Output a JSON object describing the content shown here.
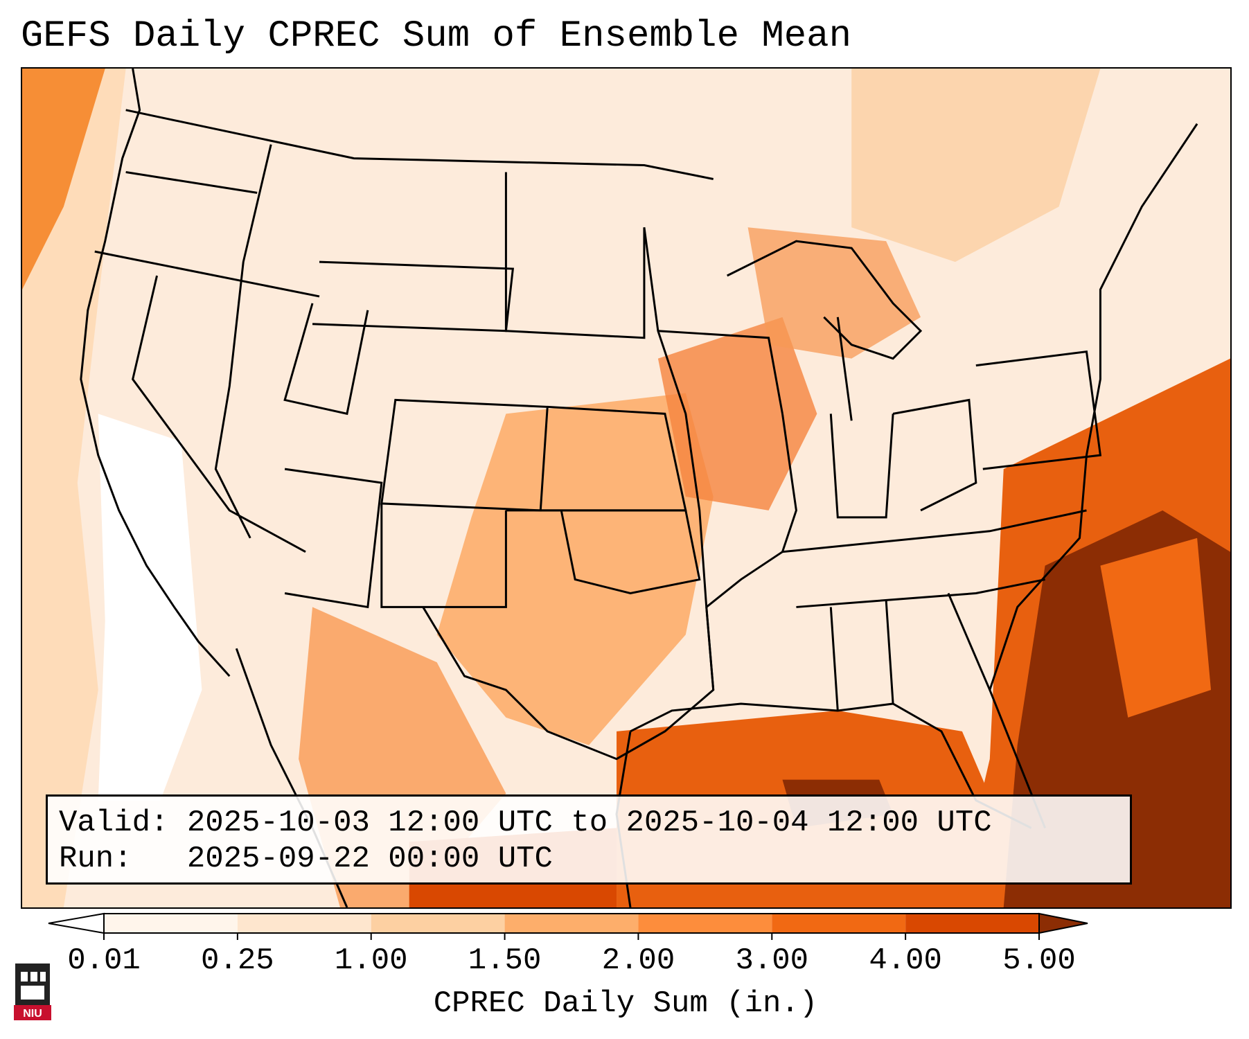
{
  "title": "GEFS Daily CPREC Sum of Ensemble Mean",
  "info": {
    "valid_label": "Valid:",
    "valid_value": "2025-10-03 12:00 UTC to 2025-10-04 12:00 UTC",
    "run_label": "Run:",
    "run_value": "2025-09-22 00:00 UTC"
  },
  "colorbar": {
    "label": "CPREC Daily Sum (in.)",
    "ticks": [
      "0.01",
      "0.25",
      "1.00",
      "1.50",
      "2.00",
      "3.00",
      "4.00",
      "5.00"
    ],
    "colors": [
      "#fff5eb",
      "#fee6ce",
      "#fdd0a2",
      "#fdae6b",
      "#fd8d3c",
      "#f16913",
      "#d94801",
      "#8c2d04"
    ],
    "under_color": "#ffffff",
    "over_color": "#8c2d04"
  },
  "logo": {
    "text": "NIU",
    "color": "#c8102e"
  }
}
